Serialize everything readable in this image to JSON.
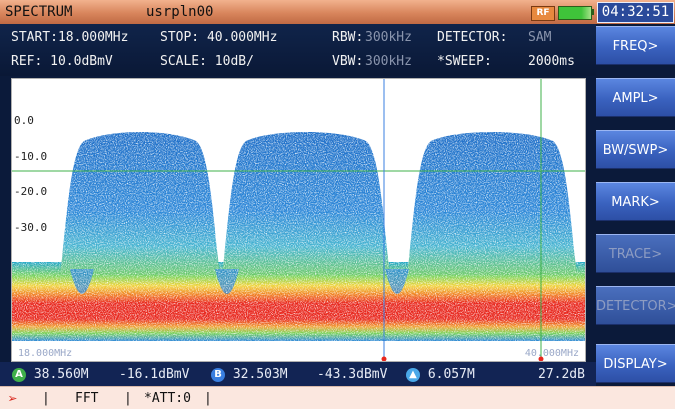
{
  "titlebar": {
    "mode": "SPECTRUM",
    "file": "usrpln00",
    "rf_badge": "RF",
    "clock": "04:32:51"
  },
  "info": {
    "start": "START:18.000MHz",
    "stop": "STOP:  40.000MHz",
    "rbw_label": "RBW:",
    "rbw_value": "300kHz",
    "detector_label": "DETECTOR:",
    "detector_value": "SAM",
    "ref": "REF:  10.0dBmV",
    "scale": "SCALE: 10dB/",
    "vbw_label": "VBW:",
    "vbw_value": "300kHz",
    "sweep_label": "*SWEEP:",
    "sweep_value": "2000ms"
  },
  "plot": {
    "y_labels": [
      "0.0",
      "-10.0",
      "-20.0",
      "-30.0"
    ],
    "corner_left": "18.000MHz",
    "corner_right": "40.000MHz"
  },
  "markers": {
    "a_letter": "A",
    "a_freq": "38.560M",
    "a_level": "-16.1dBmV",
    "b_letter": "B",
    "b_freq": "32.503M",
    "b_level": "-43.3dBmV",
    "delta_freq": "6.057M",
    "delta_level": "27.2dB"
  },
  "status": {
    "fft": "FFT",
    "att": "*ATT:0"
  },
  "softkeys": [
    {
      "label": "FREQ>",
      "enabled": true
    },
    {
      "label": "AMPL>",
      "enabled": true
    },
    {
      "label": "BW/SWP>",
      "enabled": true
    },
    {
      "label": "MARK>",
      "enabled": true
    },
    {
      "label": "TRACE>",
      "enabled": false
    },
    {
      "label": "DETECTOR>",
      "enabled": false
    },
    {
      "label": "DISPLAY>",
      "enabled": true
    }
  ],
  "colors": {
    "accent": "#3a62bf",
    "marker_a": "#3fb04a",
    "marker_b": "#3a7fe0",
    "marker_delta": "#4aa8e8",
    "noise_red": "#e8261c",
    "spectrum_blue": "#2a7fd0"
  }
}
